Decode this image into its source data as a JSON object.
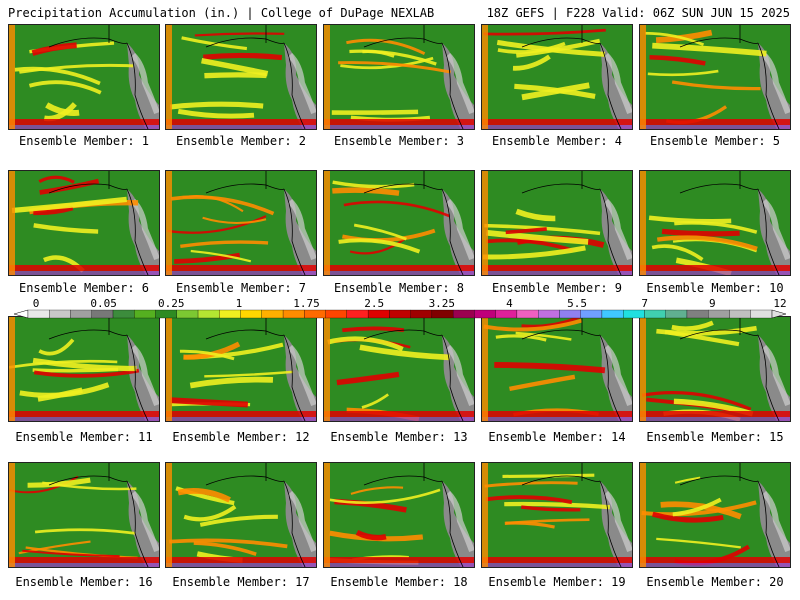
{
  "header": {
    "left": "Precipitation Accumulation (in.) | College of DuPage NEXLAB",
    "right": "18Z GEFS | F228 Valid: 06Z SUN JUN 15 2025"
  },
  "members": [
    "Ensemble Member: 1",
    "Ensemble Member: 2",
    "Ensemble Member: 3",
    "Ensemble Member: 4",
    "Ensemble Member: 5",
    "Ensemble Member: 6",
    "Ensemble Member: 7",
    "Ensemble Member: 8",
    "Ensemble Member: 9",
    "Ensemble Member: 10",
    "Ensemble Member: 11",
    "Ensemble Member: 12",
    "Ensemble Member: 13",
    "Ensemble Member: 14",
    "Ensemble Member: 15",
    "Ensemble Member: 16",
    "Ensemble Member: 17",
    "Ensemble Member: 18",
    "Ensemble Member: 19",
    "Ensemble Member: 20"
  ],
  "colorbar": {
    "ticks": [
      "0",
      "0.05",
      "0.25",
      "1",
      "1.75",
      "2.5",
      "3.25",
      "4",
      "5.5",
      "7",
      "9",
      "12"
    ],
    "colors": [
      "#e8e8e8",
      "#c8c8c8",
      "#a0a0a0",
      "#787878",
      "#3c8c3c",
      "#55b020",
      "#2e8b22",
      "#7cc832",
      "#b4e632",
      "#f0f020",
      "#ffd700",
      "#ffb000",
      "#ff8c00",
      "#ff6a00",
      "#ff4500",
      "#ff2020",
      "#e00000",
      "#c00000",
      "#a00000",
      "#800000",
      "#9b0050",
      "#c0007a",
      "#e0209a",
      "#f060c0",
      "#c070e0",
      "#9080f0",
      "#70a0ff",
      "#40c8ff",
      "#20e0e0",
      "#40d0b0",
      "#60b090",
      "#808080",
      "#a0a0a0",
      "#c0c0c0",
      "#e0e0e0"
    ]
  },
  "palette": {
    "ocean_green": "#2e8b22",
    "land_gray": "#8a8a8a",
    "band_yellow": "#f0f020",
    "band_orange": "#ff8c00",
    "band_red": "#e00000",
    "band_purple": "#9b3cc8"
  }
}
